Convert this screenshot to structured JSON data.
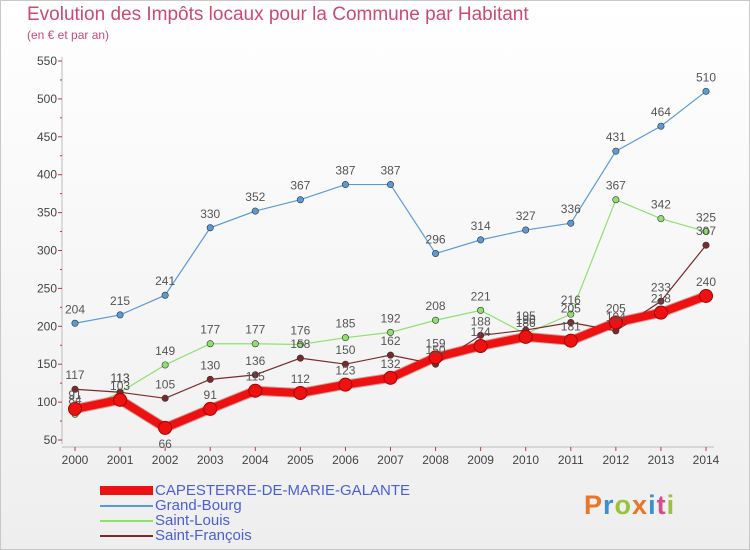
{
  "header": {
    "title": "Evolution des Impôts locaux pour la Commune par Habitant",
    "subtitle": "(en € et par an)"
  },
  "brand": {
    "text": "Proxiti",
    "colors": [
      "#e8772a",
      "#3a8fd0",
      "#9ac23b",
      "#e8772a",
      "#3a8fd0",
      "#d94b8f",
      "#9ac23b"
    ]
  },
  "chart_data": {
    "type": "line",
    "title": "Evolution des Impôts locaux pour la Commune par Habitant",
    "subtitle": "(en € et par an)",
    "x": [
      "2000",
      "2001",
      "2002",
      "2003",
      "2004",
      "2005",
      "2006",
      "2007",
      "2008",
      "2009",
      "2010",
      "2011",
      "2012",
      "2013",
      "2014"
    ],
    "ylim": [
      50,
      550
    ],
    "yticks": [
      "50",
      "100",
      "150",
      "200",
      "250",
      "300",
      "350",
      "400",
      "450",
      "500",
      "550"
    ],
    "grid": false,
    "legend_position": "bottom-left",
    "series": [
      {
        "name": "CAPESTERRE-DE-MARIE-GALANTE",
        "color": "#ee1111",
        "highlight": true,
        "values": [
          91,
          103,
          66,
          91,
          115,
          112,
          123,
          132,
          159,
          174,
          186,
          181,
          205,
          218,
          240
        ]
      },
      {
        "name": "Grand-Bourg",
        "color": "#5b9bd5",
        "values": [
          204,
          215,
          241,
          330,
          352,
          367,
          387,
          387,
          296,
          314,
          327,
          336,
          431,
          464,
          510
        ]
      },
      {
        "name": "Saint-Louis",
        "color": "#90e070",
        "values": [
          84,
          113,
          149,
          177,
          177,
          176,
          185,
          192,
          208,
          221,
          190,
          216,
          367,
          342,
          325
        ]
      },
      {
        "name": "Saint-François",
        "color": "#7a2a2a",
        "values": [
          117,
          113,
          105,
          130,
          136,
          158,
          150,
          162,
          150,
          188,
          195,
          205,
          194,
          233,
          307
        ]
      }
    ],
    "data_labels": [
      [
        91,
        103,
        66,
        91,
        115,
        112,
        123,
        132,
        159,
        174,
        186,
        181,
        205,
        218,
        240
      ],
      [
        204,
        215,
        241,
        330,
        352,
        367,
        387,
        387,
        296,
        314,
        327,
        336,
        431,
        464,
        510
      ],
      [
        84,
        113,
        149,
        177,
        177,
        176,
        185,
        192,
        208,
        221,
        190,
        216,
        367,
        342,
        325
      ],
      [
        117,
        113,
        105,
        130,
        136,
        158,
        150,
        162,
        150,
        188,
        195,
        205,
        194,
        233,
        307
      ]
    ]
  }
}
